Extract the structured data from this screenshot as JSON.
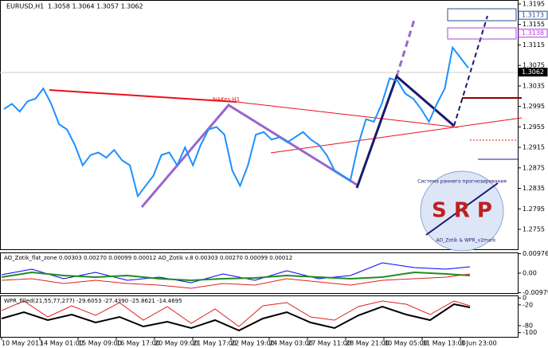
{
  "header": {
    "symbol": "EURUSD,H1",
    "ohlc": "1.3058 1.3064 1.3057 1.3062"
  },
  "main": {
    "ylim": [
      1.2755,
      1.3195
    ],
    "yticks": [
      1.3195,
      1.3155,
      1.3115,
      1.3075,
      1.3035,
      1.2995,
      1.2955,
      1.2915,
      1.2875,
      1.2835,
      1.2795,
      1.2755
    ],
    "current": 1.3062,
    "level_blue": 1.3173,
    "level_purple": 1.3138,
    "closes": [
      1.299,
      1.3,
      1.2985,
      1.3005,
      1.301,
      1.303,
      1.3,
      1.296,
      1.295,
      1.292,
      1.288,
      1.29,
      1.2905,
      1.2895,
      1.291,
      1.289,
      1.288,
      1.282,
      1.284,
      1.286,
      1.29,
      1.2905,
      1.288,
      1.2915,
      1.288,
      1.292,
      1.295,
      1.2955,
      1.294,
      1.287,
      1.284,
      1.288,
      1.294,
      1.2945,
      1.293,
      1.2935,
      1.2925,
      1.2935,
      1.2945,
      1.293,
      1.292,
      1.29,
      1.287,
      1.286,
      1.285,
      1.292,
      1.297,
      1.2965,
      1.3,
      1.305,
      1.3045,
      1.302,
      1.301,
      1.299,
      1.2965,
      1.3,
      1.303,
      1.311,
      1.309,
      1.307
    ],
    "annotation": "NAKes H1"
  },
  "indicator1": {
    "label": "AO_Zotik_flat_zone 0.00303 0.00270 0.00099 0.00012   AO_Zotik v.8 0.00303 0.00270 0.00099 0.00012",
    "ylim": [
      -0.01,
      0.01
    ],
    "yticks": [
      0.00976,
      {
        "value": 0,
        "label": "0.00"
      },
      -0.00979
    ]
  },
  "indicator2": {
    "label": "WPR_filled(21,55,77,277) -29.6053 -27.4390 -25.8621 -14.4695",
    "ylim": [
      -110,
      5
    ],
    "yticks": [
      0,
      -20,
      -80,
      -100
    ]
  },
  "time_labels": [
    "10 May 2013",
    "14 May 01:00",
    "15 May 09:00",
    "16 May 17:00",
    "20 May 09:00",
    "21 May 17:00",
    "22 May 19:00",
    "24 May 03:00",
    "27 May 11:00",
    "28 May 21:00",
    "30 May 05:00",
    "31 May 13:00",
    "3 Jun 23:00"
  ],
  "logo": {
    "letters": "S R P",
    "ring_text": "Система раннего прогнозирования",
    "footer": "AO_Zotik & WPR_v2mark"
  }
}
